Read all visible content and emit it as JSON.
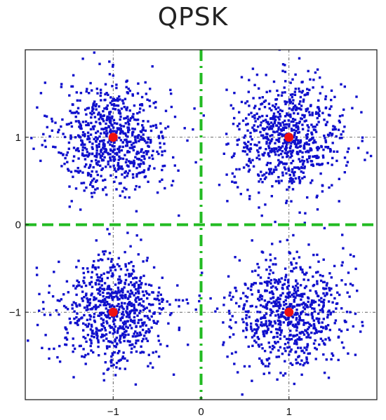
{
  "title": "QPSK",
  "chart_data": {
    "type": "scatter",
    "title": "QPSK",
    "xlabel": "",
    "ylabel": "",
    "xlim": [
      -2,
      2
    ],
    "ylim": [
      -2,
      2
    ],
    "xticks": [
      -1,
      0,
      1
    ],
    "yticks": [
      1,
      0,
      -1
    ],
    "xtick_labels": [
      "−1",
      "0",
      "1"
    ],
    "ytick_labels": [
      "1",
      "0",
      "−1"
    ],
    "grid": true,
    "grid_style": "dash-dot",
    "decision_boundaries": {
      "x": 0,
      "y": 0,
      "color": "#22bb22",
      "style": "dashed"
    },
    "series": [
      {
        "role": "received-symbols",
        "color": "#1010cc",
        "noise_std": 0.32,
        "points_per_cluster": 750,
        "cluster_centers": [
          [
            -1,
            1
          ],
          [
            1,
            1
          ],
          [
            -1,
            -1
          ],
          [
            1,
            -1
          ]
        ]
      },
      {
        "role": "ideal-constellation",
        "color": "#ee1111",
        "points": [
          [
            -1,
            1
          ],
          [
            1,
            1
          ],
          [
            -1,
            -1
          ],
          [
            1,
            -1
          ]
        ]
      }
    ]
  }
}
